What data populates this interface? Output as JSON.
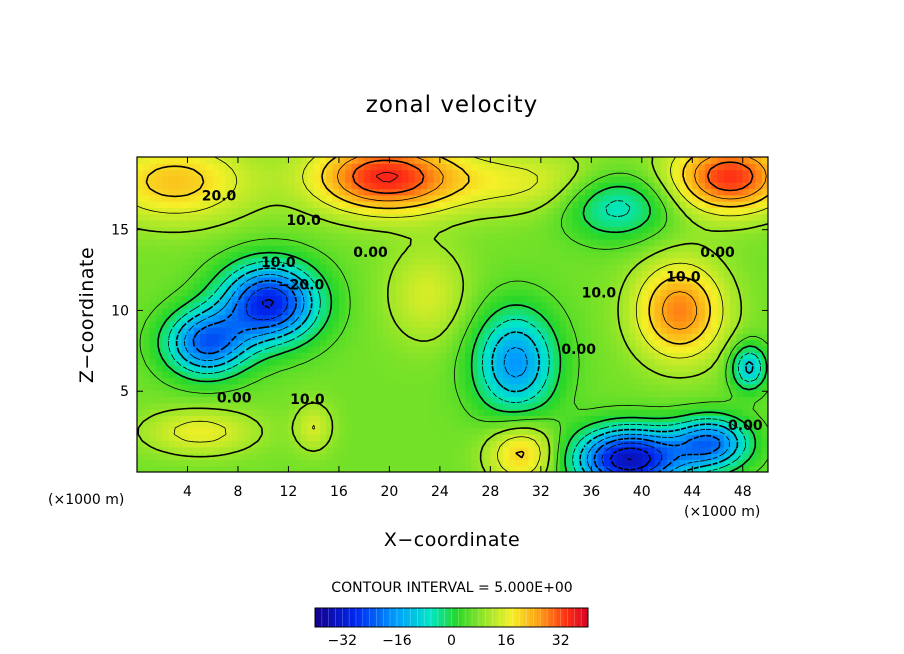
{
  "chart_data": {
    "type": "heatmap",
    "title": "zonal velocity",
    "xlabel": "X−coordinate",
    "ylabel": "Z−coordinate",
    "x_unit": "(×1000 m)",
    "z_unit": "(×1000 m)",
    "xlim": [
      0,
      50
    ],
    "ylim": [
      0,
      19.5
    ],
    "x_ticks": [
      4,
      8,
      12,
      16,
      20,
      24,
      28,
      32,
      36,
      40,
      44,
      48
    ],
    "x_tick_labels": [
      "4",
      "8",
      "12",
      "16",
      "20",
      "24",
      "28",
      "32",
      "36",
      "40",
      "44",
      "48"
    ],
    "y_ticks": [
      5,
      10,
      15
    ],
    "y_tick_labels": [
      "5",
      "10",
      "15"
    ],
    "contour_interval_text": "CONTOUR INTERVAL = 5.000E+00",
    "contour_interval": 5.0,
    "colorbar": {
      "range": [
        -40,
        40
      ],
      "ticks": [
        -32,
        -16,
        0,
        16,
        32
      ],
      "tick_labels": [
        "−32",
        "−16",
        "0",
        "16",
        "32"
      ]
    },
    "contour_labels": [
      {
        "text": "20.0",
        "x": 6.5,
        "z": 16.8
      },
      {
        "text": "10.0",
        "x": 13.2,
        "z": 15.3
      },
      {
        "text": "10.0",
        "x": 11.2,
        "z": 12.7
      },
      {
        "text": "−20.0",
        "x": 13.0,
        "z": 11.3
      },
      {
        "text": "0.00",
        "x": 18.5,
        "z": 13.3
      },
      {
        "text": "10.0",
        "x": 36.6,
        "z": 10.8
      },
      {
        "text": "0.00",
        "x": 35.0,
        "z": 7.3
      },
      {
        "text": "0.00",
        "x": 46.0,
        "z": 13.3
      },
      {
        "text": "10.0",
        "x": 43.3,
        "z": 11.8
      },
      {
        "text": "0.00",
        "x": 7.7,
        "z": 4.3
      },
      {
        "text": "10.0",
        "x": 13.5,
        "z": 4.2
      },
      {
        "text": "0.00",
        "x": 48.2,
        "z": 2.6
      }
    ],
    "field_features": [
      {
        "kind": "max",
        "x": 19.5,
        "z": 18.3,
        "value": 34,
        "sx": 5.5,
        "sz": 2.2
      },
      {
        "kind": "max",
        "x": 47.0,
        "z": 18.3,
        "value": 34,
        "sx": 4.5,
        "sz": 2.2
      },
      {
        "kind": "max",
        "x": 3.0,
        "z": 18.0,
        "value": 22,
        "sx": 6.0,
        "sz": 2.5
      },
      {
        "kind": "max",
        "x": 30.0,
        "z": 18.0,
        "value": 16,
        "sx": 8.0,
        "sz": 2.0
      },
      {
        "kind": "min",
        "x": 10.5,
        "z": 10.5,
        "value": -30,
        "sx": 3.8,
        "sz": 2.4
      },
      {
        "kind": "min",
        "x": 5.5,
        "z": 8.0,
        "value": -22,
        "sx": 3.2,
        "sz": 2.0
      },
      {
        "kind": "max",
        "x": 23.0,
        "z": 11.0,
        "value": 15,
        "sx": 3.2,
        "sz": 3.0
      },
      {
        "kind": "min",
        "x": 30.0,
        "z": 6.8,
        "value": -17,
        "sx": 3.2,
        "sz": 3.2
      },
      {
        "kind": "max",
        "x": 43.0,
        "z": 10.0,
        "value": 28,
        "sx": 3.5,
        "sz": 3.0
      },
      {
        "kind": "min",
        "x": 39.0,
        "z": 0.8,
        "value": -35,
        "sx": 4.2,
        "sz": 1.9
      },
      {
        "kind": "min",
        "x": 45.5,
        "z": 1.8,
        "value": -20,
        "sx": 3.0,
        "sz": 1.6
      },
      {
        "kind": "max",
        "x": 30.5,
        "z": 1.2,
        "value": 22,
        "sx": 2.7,
        "sz": 1.9
      },
      {
        "kind": "max",
        "x": 5.0,
        "z": 2.5,
        "value": 17,
        "sx": 4.5,
        "sz": 1.4
      },
      {
        "kind": "max",
        "x": 14.0,
        "z": 2.8,
        "value": 15,
        "sx": 1.5,
        "sz": 1.5
      },
      {
        "kind": "min",
        "x": 48.5,
        "z": 6.5,
        "value": -12,
        "sx": 1.4,
        "sz": 1.4
      },
      {
        "kind": "min",
        "x": 38.0,
        "z": 16.5,
        "value": -8,
        "sx": 4.0,
        "sz": 2.0
      }
    ],
    "background_value": 7,
    "grid": false,
    "legend": "bottom"
  }
}
